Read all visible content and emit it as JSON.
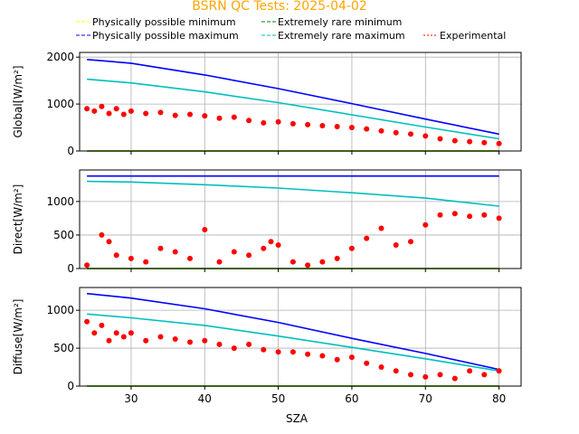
{
  "chart_data": {
    "type": "scatter",
    "title": "BSRN QC Tests: 2025-04-02",
    "title_color": "#ffa500",
    "xlabel": "SZA",
    "xlim": [
      23,
      83
    ],
    "xticks": [
      30,
      40,
      50,
      60,
      70,
      80
    ],
    "grid": true,
    "legend_position": "top",
    "legend": [
      {
        "label": "Physically possible minimum",
        "color": "#ffff00",
        "style": "dashed"
      },
      {
        "label": "Extremely rare minimum",
        "color": "#008000",
        "style": "dashed"
      },
      {
        "label": "Physically possible maximum",
        "color": "#0000ff",
        "style": "dashed"
      },
      {
        "label": "Extremely rare maximum",
        "color": "#00bfbf",
        "style": "dashed"
      },
      {
        "label": "Experimental",
        "color": "#ff0000",
        "style": "dotted"
      }
    ],
    "panels": [
      {
        "ylabel": "Global[W/m²]",
        "ylim": [
          0,
          2100
        ],
        "yticks": [
          0,
          1000,
          2000
        ],
        "lines": [
          {
            "name": "Physically possible minimum",
            "color": "#ffff00",
            "x": [
              24,
              80
            ],
            "y": [
              0,
              0
            ]
          },
          {
            "name": "Extremely rare minimum",
            "color": "#008000",
            "x": [
              24,
              80
            ],
            "y": [
              0,
              0
            ]
          },
          {
            "name": "Physically possible maximum",
            "color": "#0000ff",
            "x": [
              24,
              30,
              40,
              50,
              60,
              70,
              80
            ],
            "y": [
              1950,
              1870,
              1620,
              1330,
              1010,
              680,
              360
            ]
          },
          {
            "name": "Extremely rare maximum",
            "color": "#00bfbf",
            "x": [
              24,
              30,
              40,
              50,
              60,
              70,
              80
            ],
            "y": [
              1530,
              1450,
              1260,
              1030,
              770,
              510,
              260
            ]
          }
        ],
        "scatter": {
          "name": "Experimental",
          "color": "#ff0000",
          "x": [
            24,
            25,
            26,
            27,
            28,
            29,
            30,
            32,
            34,
            36,
            38,
            40,
            42,
            44,
            46,
            48,
            50,
            52,
            54,
            56,
            58,
            60,
            62,
            64,
            66,
            68,
            70,
            72,
            74,
            76,
            78,
            80
          ],
          "y": [
            900,
            850,
            950,
            800,
            900,
            780,
            850,
            800,
            820,
            760,
            780,
            750,
            700,
            720,
            650,
            600,
            620,
            580,
            560,
            540,
            520,
            500,
            470,
            430,
            390,
            360,
            320,
            260,
            220,
            200,
            180,
            160
          ]
        }
      },
      {
        "ylabel": "Direct[W/m²]",
        "ylim": [
          0,
          1470
        ],
        "yticks": [
          0,
          500,
          1000
        ],
        "lines": [
          {
            "name": "Physically possible minimum",
            "color": "#ffff00",
            "x": [
              24,
              80
            ],
            "y": [
              0,
              0
            ]
          },
          {
            "name": "Extremely rare minimum",
            "color": "#008000",
            "x": [
              24,
              80
            ],
            "y": [
              0,
              0
            ]
          },
          {
            "name": "Physically possible maximum",
            "color": "#0000ff",
            "x": [
              24,
              80
            ],
            "y": [
              1380,
              1380
            ]
          },
          {
            "name": "Extremely rare maximum",
            "color": "#00bfbf",
            "x": [
              24,
              30,
              40,
              50,
              60,
              70,
              80
            ],
            "y": [
              1300,
              1290,
              1250,
              1200,
              1130,
              1050,
              930
            ]
          }
        ],
        "scatter": {
          "name": "Experimental",
          "color": "#ff0000",
          "x": [
            24,
            26,
            27,
            28,
            30,
            32,
            34,
            36,
            38,
            40,
            42,
            44,
            46,
            48,
            49,
            50,
            52,
            54,
            56,
            58,
            60,
            62,
            64,
            66,
            68,
            70,
            72,
            74,
            76,
            78,
            80
          ],
          "y": [
            50,
            500,
            400,
            200,
            150,
            100,
            300,
            250,
            150,
            580,
            100,
            250,
            200,
            300,
            400,
            350,
            100,
            50,
            100,
            150,
            300,
            450,
            600,
            350,
            400,
            650,
            800,
            820,
            780,
            800,
            750
          ]
        }
      },
      {
        "ylabel": "Diffuse[W/m²]",
        "ylim": [
          0,
          1300
        ],
        "yticks": [
          0,
          500,
          1000
        ],
        "lines": [
          {
            "name": "Physically possible minimum",
            "color": "#ffff00",
            "x": [
              24,
              80
            ],
            "y": [
              0,
              0
            ]
          },
          {
            "name": "Extremely rare minimum",
            "color": "#008000",
            "x": [
              24,
              80
            ],
            "y": [
              0,
              0
            ]
          },
          {
            "name": "Physically possible maximum",
            "color": "#0000ff",
            "x": [
              24,
              30,
              40,
              50,
              60,
              70,
              80
            ],
            "y": [
              1220,
              1160,
              1020,
              840,
              630,
              430,
              220
            ]
          },
          {
            "name": "Extremely rare maximum",
            "color": "#00bfbf",
            "x": [
              24,
              30,
              40,
              50,
              60,
              70,
              80
            ],
            "y": [
              950,
              900,
              800,
              660,
              510,
              360,
              200
            ]
          }
        ],
        "scatter": {
          "name": "Experimental",
          "color": "#ff0000",
          "x": [
            24,
            25,
            26,
            27,
            28,
            29,
            30,
            32,
            34,
            36,
            38,
            40,
            42,
            44,
            46,
            48,
            50,
            52,
            54,
            56,
            58,
            60,
            62,
            64,
            66,
            68,
            70,
            72,
            74,
            76,
            78,
            80
          ],
          "y": [
            850,
            700,
            800,
            600,
            700,
            650,
            700,
            600,
            650,
            620,
            580,
            600,
            550,
            500,
            550,
            480,
            450,
            450,
            420,
            400,
            350,
            380,
            300,
            250,
            200,
            150,
            120,
            150,
            100,
            200,
            150,
            200
          ]
        }
      }
    ]
  }
}
